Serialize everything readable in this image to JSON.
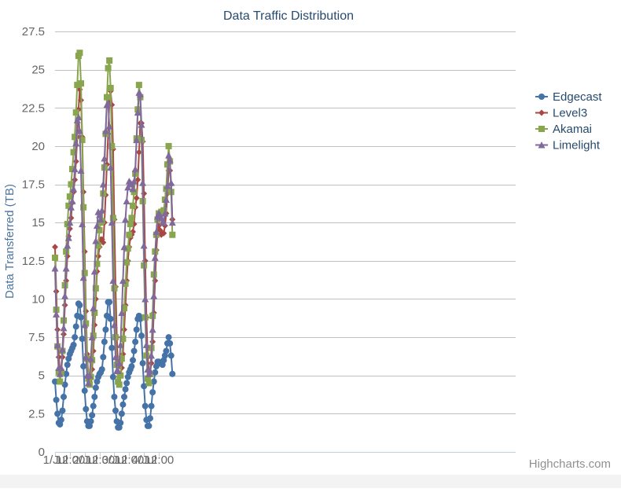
{
  "chart_data": {
    "type": "line",
    "title": "Data Traffic Distribution",
    "xlabel": "",
    "ylabel": "Data Transferred (TB)",
    "ylim": [
      0,
      27.5
    ],
    "yticks": [
      "0",
      "2.5",
      "5",
      "7.5",
      "10",
      "12.5",
      "15",
      "17.5",
      "20",
      "22.5",
      "25",
      "27.5"
    ],
    "xticks": [
      "1/Jul",
      "12:00",
      "2/Jul",
      "12:00",
      "3/Jul",
      "12:00",
      "4/Jul",
      "12:00"
    ],
    "x_interval_hours": 1,
    "grid": "horizontal",
    "legend_position": "right",
    "series": [
      {
        "name": "Edgecast",
        "color": "#4572A7",
        "marker": "circle",
        "values": [
          4.6,
          3.4,
          2.5,
          1.9,
          1.8,
          2.1,
          2.7,
          3.6,
          4.4,
          5.1,
          5.7,
          6.1,
          6.4,
          6.6,
          6.8,
          7.0,
          7.5,
          8.2,
          8.9,
          9.7,
          9.6,
          8.8,
          7.4,
          5.6,
          4.0,
          2.8,
          2.0,
          1.7,
          1.7,
          2.0,
          2.4,
          3.0,
          3.6,
          4.2,
          4.6,
          4.9,
          5.1,
          5.2,
          5.4,
          6.2,
          7.2,
          8.0,
          8.9,
          9.8,
          9.8,
          8.7,
          6.8,
          4.9,
          3.6,
          2.7,
          2.0,
          1.6,
          1.6,
          1.9,
          2.5,
          3.1,
          3.6,
          4.1,
          4.5,
          4.9,
          5.2,
          5.4,
          5.6,
          6.0,
          6.6,
          7.2,
          8.0,
          8.7,
          8.9,
          8.7,
          7.6,
          5.8,
          4.3,
          3.0,
          2.1,
          1.7,
          1.7,
          2.2,
          3.0,
          3.9,
          4.6,
          5.2,
          5.6,
          5.9,
          5.9,
          5.8,
          5.8,
          5.7,
          6.0,
          6.3,
          6.6,
          7.1,
          7.5,
          7.1,
          6.3,
          5.1
        ]
      },
      {
        "name": "Level3",
        "color": "#AA4643",
        "marker": "diamond",
        "values": [
          13.4,
          10.5,
          8.0,
          6.2,
          5.3,
          5.2,
          6.2,
          7.7,
          9.6,
          11.2,
          12.8,
          14.1,
          14.6,
          15.3,
          16.3,
          17.0,
          17.8,
          19.0,
          20.6,
          22.4,
          23.7,
          23.0,
          20.6,
          17.0,
          13.1,
          9.2,
          6.4,
          5.0,
          4.6,
          4.8,
          5.4,
          6.6,
          8.3,
          10.0,
          11.8,
          12.8,
          13.4,
          13.9,
          13.9,
          13.7,
          15.0,
          16.8,
          18.8,
          20.8,
          22.9,
          23.6,
          22.7,
          19.8,
          15.2,
          10.8,
          7.5,
          5.6,
          4.9,
          5.0,
          5.5,
          6.4,
          8.0,
          9.6,
          11.2,
          12.5,
          13.4,
          14.0,
          14.2,
          14.4,
          14.9,
          16.0,
          16.6,
          17.8,
          19.6,
          21.5,
          21.5,
          20.3,
          16.9,
          12.5,
          8.8,
          6.2,
          5.3,
          5.2,
          5.8,
          7.2,
          9.1,
          11.2,
          13.2,
          14.3,
          14.8,
          14.5,
          14.2,
          14.3,
          14.3,
          14.8,
          15.6,
          16.9,
          18.4,
          18.4,
          17.5,
          15.2
        ]
      },
      {
        "name": "Akamai",
        "color": "#89A54E",
        "marker": "square",
        "values": [
          12.7,
          9.3,
          6.9,
          5.2,
          4.6,
          5.2,
          6.6,
          8.6,
          10.9,
          13.1,
          14.9,
          16.1,
          16.7,
          17.5,
          18.5,
          19.6,
          20.6,
          22.2,
          24.0,
          25.9,
          26.1,
          24.1,
          20.4,
          16.0,
          11.7,
          8.4,
          6.1,
          4.8,
          4.4,
          4.9,
          6.0,
          7.6,
          9.1,
          10.7,
          12.3,
          13.5,
          14.5,
          15.0,
          15.1,
          16.9,
          18.6,
          20.8,
          23.2,
          25.1,
          25.6,
          23.8,
          20.0,
          15.3,
          10.7,
          7.5,
          5.7,
          4.6,
          4.4,
          5.0,
          6.1,
          7.4,
          9.4,
          11.0,
          12.4,
          13.3,
          14.2,
          14.9,
          15.3,
          16.1,
          17.0,
          18.2,
          20.5,
          22.4,
          24.0,
          23.2,
          20.4,
          16.4,
          12.2,
          8.8,
          6.3,
          4.8,
          4.5,
          5.1,
          6.8,
          8.9,
          11.6,
          13.1,
          14.2,
          15.2,
          15.6,
          15.6,
          15.7,
          15.6,
          15.8,
          16.5,
          17.2,
          18.8,
          20.0,
          19.0,
          17.0,
          14.2
        ]
      },
      {
        "name": "Limelight",
        "color": "#80699B",
        "marker": "triangle",
        "values": [
          12.0,
          9.0,
          7.0,
          5.5,
          5.1,
          5.5,
          6.7,
          8.1,
          10.2,
          12.0,
          13.5,
          14.0,
          15.0,
          16.0,
          16.4,
          17.2,
          18.5,
          20.2,
          21.7,
          21.9,
          21.0,
          18.4,
          14.9,
          11.4,
          8.3,
          6.2,
          5.0,
          4.5,
          5.0,
          6.1,
          7.5,
          9.4,
          11.8,
          13.8,
          14.8,
          15.7,
          15.5,
          15.2,
          15.8,
          17.5,
          19.2,
          21.0,
          22.7,
          22.8,
          21.3,
          18.6,
          15.0,
          11.2,
          8.3,
          6.2,
          5.3,
          5.3,
          5.8,
          7.0,
          9.1,
          11.2,
          13.4,
          15.2,
          16.4,
          17.3,
          17.7,
          17.6,
          17.5,
          17.2,
          17.7,
          18.5,
          20.4,
          22.2,
          23.5,
          23.4,
          21.4,
          17.6,
          13.5,
          10.0,
          7.0,
          5.4,
          5.1,
          5.3,
          6.3,
          8.0,
          10.2,
          12.7,
          14.4,
          15.4,
          15.6,
          15.5,
          15.3,
          15.0,
          15.0,
          15.6,
          16.5,
          17.4,
          19.4,
          19.1,
          17.6,
          15.0
        ]
      }
    ]
  },
  "credit": "Highcharts.com"
}
